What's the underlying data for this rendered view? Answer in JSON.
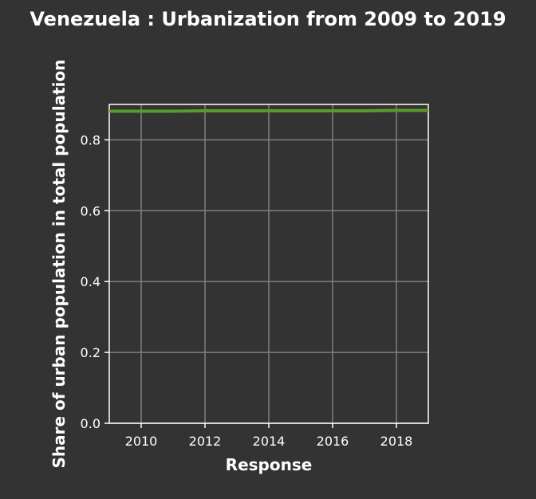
{
  "chart_data": {
    "type": "line",
    "title": "Venezuela : Urbanization from 2009 to 2019",
    "xlabel": "Response",
    "ylabel": "Share of urban population in total population",
    "xlim": [
      2009,
      2019
    ],
    "ylim": [
      0,
      0.9
    ],
    "xticks": [
      2010,
      2012,
      2014,
      2016,
      2018
    ],
    "yticks": [
      0.0,
      0.2,
      0.4,
      0.6,
      0.8
    ],
    "ytick_labels": [
      "0.0",
      "0.2",
      "0.4",
      "0.6",
      "0.8"
    ],
    "grid": true,
    "series": [
      {
        "color": "#5a9a2a",
        "x": [
          2009,
          2010,
          2011,
          2012,
          2013,
          2014,
          2015,
          2016,
          2017,
          2018,
          2019
        ],
        "values": [
          0.881,
          0.881,
          0.881,
          0.882,
          0.882,
          0.882,
          0.882,
          0.882,
          0.882,
          0.883,
          0.883
        ]
      }
    ]
  },
  "colors": {
    "background": "#333333",
    "grid": "#7f7f7f",
    "axis": "#ffffff",
    "text": "#ffffff"
  }
}
